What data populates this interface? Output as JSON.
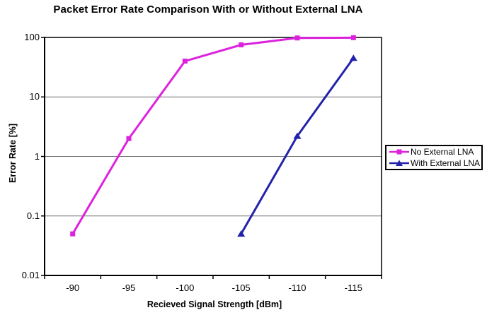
{
  "chart_data": {
    "type": "line",
    "title": "Packet Error Rate Comparison With or Without External LNA",
    "xlabel": "Recieved Signal Strength [dBm]",
    "ylabel": "Error Rate [%]",
    "x_categories": [
      "-90",
      "-95",
      "-100",
      "-105",
      "-110",
      "-115"
    ],
    "y_scale": "log",
    "ylim": [
      0.01,
      100
    ],
    "y_tick_labels": [
      "100",
      "10",
      "1",
      "0.1",
      "0.01"
    ],
    "y_tick_values": [
      100,
      10,
      1,
      0.1,
      0.01
    ],
    "grid": "horizontal-major-only",
    "legend_position": "right-middle",
    "axis_color": "#000000",
    "gridline_color": "#737373",
    "plot_background": "#ffffff",
    "series": [
      {
        "name": "No External LNA",
        "color": "#DD22DD",
        "marker": "square",
        "x": [
          "-90",
          "-95",
          "-100",
          "-105",
          "-110",
          "-115"
        ],
        "values": [
          0.05,
          2,
          40,
          75,
          98,
          99
        ]
      },
      {
        "name": "With External LNA",
        "color": "#2222AA",
        "marker": "triangle",
        "x": [
          "-105",
          "-110",
          "-115"
        ],
        "values": [
          0.05,
          2.2,
          45
        ]
      }
    ]
  }
}
